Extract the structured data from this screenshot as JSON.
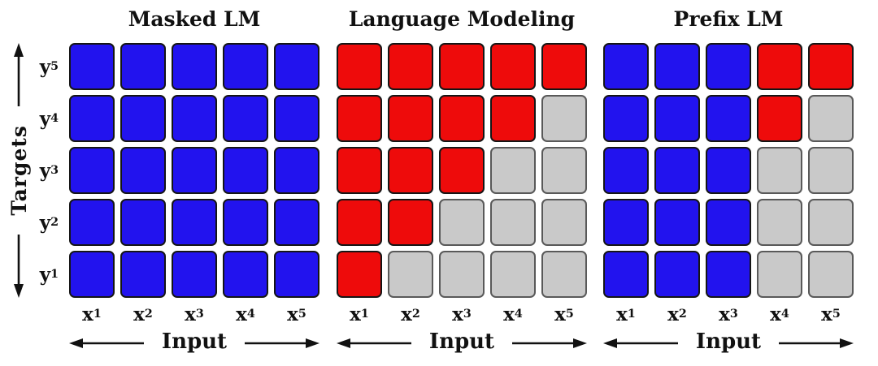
{
  "figure": {
    "targets_axis_label": "Targets",
    "input_axis_label": "Input",
    "row_labels": [
      {
        "base": "y",
        "sub": "5"
      },
      {
        "base": "y",
        "sub": "4"
      },
      {
        "base": "y",
        "sub": "3"
      },
      {
        "base": "y",
        "sub": "2"
      },
      {
        "base": "y",
        "sub": "1"
      }
    ],
    "col_labels": [
      {
        "base": "x",
        "sub": "1"
      },
      {
        "base": "x",
        "sub": "2"
      },
      {
        "base": "x",
        "sub": "3"
      },
      {
        "base": "x",
        "sub": "4"
      },
      {
        "base": "x",
        "sub": "5"
      }
    ],
    "cell_styles": {
      "blue": {
        "fill": "#2213ee",
        "border": "#151515"
      },
      "red": {
        "fill": "#ee0b0b",
        "border": "#151515"
      },
      "gray": {
        "fill": "#c9c9c9",
        "border": "#595959"
      }
    },
    "arrow_color": "#111111",
    "panels": [
      {
        "id": "masked-lm",
        "title": "Masked LM",
        "grid": [
          [
            "blue",
            "blue",
            "blue",
            "blue",
            "blue"
          ],
          [
            "blue",
            "blue",
            "blue",
            "blue",
            "blue"
          ],
          [
            "blue",
            "blue",
            "blue",
            "blue",
            "blue"
          ],
          [
            "blue",
            "blue",
            "blue",
            "blue",
            "blue"
          ],
          [
            "blue",
            "blue",
            "blue",
            "blue",
            "blue"
          ]
        ]
      },
      {
        "id": "language-modeling",
        "title": "Language Modeling",
        "grid": [
          [
            "red",
            "red",
            "red",
            "red",
            "red"
          ],
          [
            "red",
            "red",
            "red",
            "red",
            "gray"
          ],
          [
            "red",
            "red",
            "red",
            "gray",
            "gray"
          ],
          [
            "red",
            "red",
            "gray",
            "gray",
            "gray"
          ],
          [
            "red",
            "gray",
            "gray",
            "gray",
            "gray"
          ]
        ]
      },
      {
        "id": "prefix-lm",
        "title": "Prefix LM",
        "grid": [
          [
            "blue",
            "blue",
            "blue",
            "red",
            "red"
          ],
          [
            "blue",
            "blue",
            "blue",
            "red",
            "gray"
          ],
          [
            "blue",
            "blue",
            "blue",
            "gray",
            "gray"
          ],
          [
            "blue",
            "blue",
            "blue",
            "gray",
            "gray"
          ],
          [
            "blue",
            "blue",
            "blue",
            "gray",
            "gray"
          ]
        ]
      }
    ]
  }
}
